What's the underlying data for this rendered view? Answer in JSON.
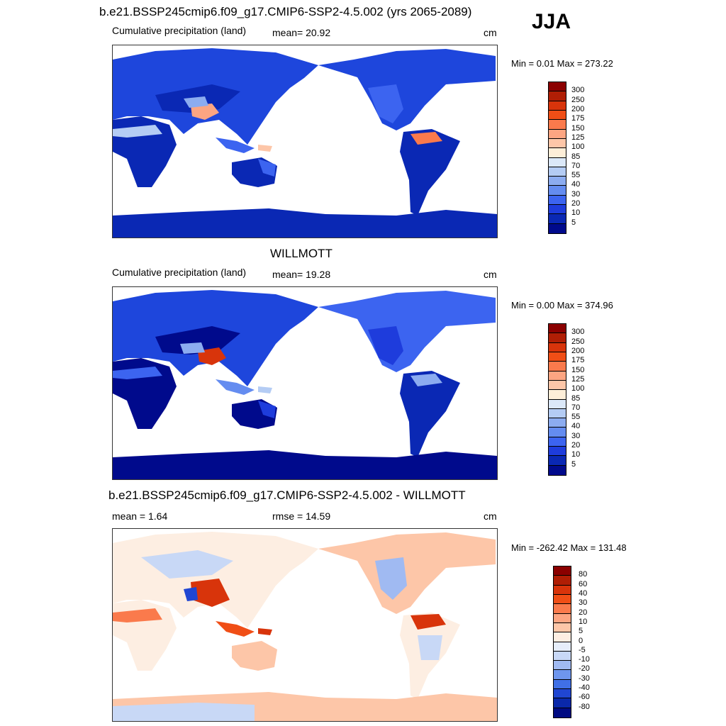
{
  "season": "JJA",
  "panels": [
    {
      "title": "b.e21.BSSP245cmip6.f09_g17.CMIP6-SSP2-4.5.002 (yrs 2065-2089)",
      "left_label": "Cumulative precipitation (land)",
      "center_label": "mean=  20.92",
      "units": "cm",
      "minmax": "Min =   0.01 Max = 273.22",
      "colorbar_labels": [
        "300",
        "250",
        "200",
        "175",
        "150",
        "125",
        "100",
        "85",
        "70",
        "55",
        "40",
        "30",
        "20",
        "10",
        "5"
      ],
      "colorbar_colors": [
        "#8b0000",
        "#b01e05",
        "#d8340b",
        "#f04e16",
        "#fa7a4c",
        "#fca582",
        "#fdc6a8",
        "#fdeed8",
        "#dbe8f8",
        "#b4ccf4",
        "#8cacf0",
        "#648cf0",
        "#3c64f0",
        "#1e3cdc",
        "#0a28b4",
        "#000a8c"
      ]
    },
    {
      "title": "WILLMOTT",
      "left_label": "Cumulative precipitation (land)",
      "center_label": "mean=  19.28",
      "units": "cm",
      "minmax": "Min =   0.00 Max = 374.96",
      "colorbar_labels": [
        "300",
        "250",
        "200",
        "175",
        "150",
        "125",
        "100",
        "85",
        "70",
        "55",
        "40",
        "30",
        "20",
        "10",
        "5"
      ],
      "colorbar_colors": [
        "#8b0000",
        "#b01e05",
        "#d8340b",
        "#f04e16",
        "#fa7a4c",
        "#fca582",
        "#fdc6a8",
        "#fdeed8",
        "#dbe8f8",
        "#b4ccf4",
        "#8cacf0",
        "#648cf0",
        "#3c64f0",
        "#1e3cdc",
        "#0a28b4",
        "#000a8c"
      ]
    },
    {
      "title": "b.e21.BSSP245cmip6.f09_g17.CMIP6-SSP2-4.5.002 - WILLMOTT",
      "left_label": "mean =   1.64",
      "center_label": "rmse =  14.59",
      "units": "cm",
      "minmax": "Min = -262.42 Max = 131.48",
      "colorbar_labels": [
        "80",
        "60",
        "40",
        "30",
        "20",
        "10",
        "5",
        "0",
        "-5",
        "-10",
        "-20",
        "-30",
        "-40",
        "-60",
        "-80"
      ],
      "colorbar_colors": [
        "#8b0000",
        "#b01e05",
        "#d8340b",
        "#f04e16",
        "#fa7a4c",
        "#fca582",
        "#fdc6a8",
        "#fdeee2",
        "#e6eefa",
        "#c8d8f6",
        "#a0baf2",
        "#6e96ee",
        "#4070e6",
        "#2046d2",
        "#0a28aa",
        "#000a82"
      ]
    }
  ]
}
